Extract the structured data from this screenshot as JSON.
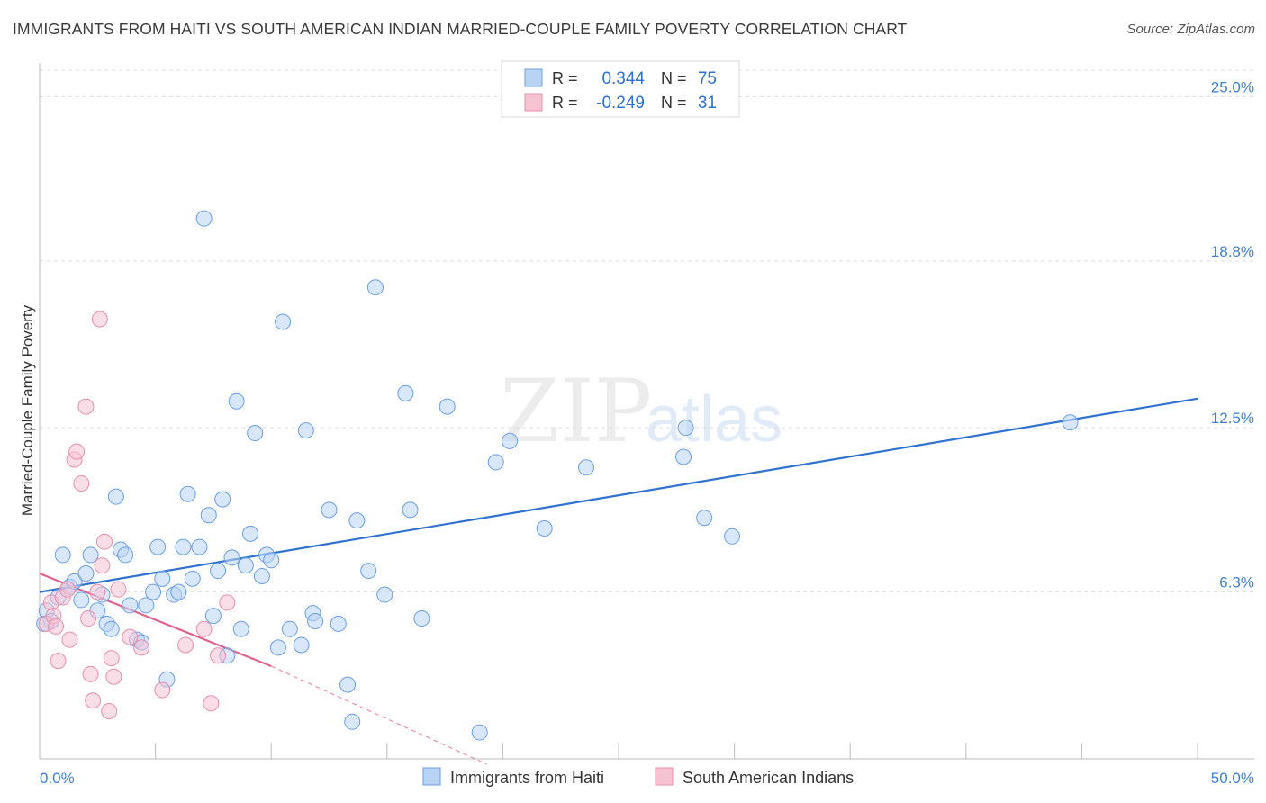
{
  "header": {
    "title": "IMMIGRANTS FROM HAITI VS SOUTH AMERICAN INDIAN MARRIED-COUPLE FAMILY POVERTY CORRELATION CHART",
    "source": "Source: ZipAtlas.com"
  },
  "watermark": {
    "zip": "ZIP",
    "atlas": "atlas"
  },
  "colors": {
    "blue_fill": "#b9d3f5",
    "blue_stroke": "#6a9ee0",
    "blue_line": "#2f72d0",
    "pink_fill": "#f6c3d3",
    "pink_stroke": "#e58fab",
    "pink_line": "#e0628f",
    "tick_text": "#3f7fd0",
    "grid": "#dddddd"
  },
  "chart_data": {
    "type": "scatter",
    "ylabel": "Married-Couple Family Poverty",
    "xlim": [
      0,
      50
    ],
    "ylim": [
      0,
      26.2
    ],
    "y_ticks": [
      {
        "value": 6.3,
        "label": "6.3%"
      },
      {
        "value": 12.5,
        "label": "12.5%"
      },
      {
        "value": 18.8,
        "label": "18.8%"
      },
      {
        "value": 25.0,
        "label": "25.0%"
      }
    ],
    "x_tick_labels": {
      "left": "0.0%",
      "right": "50.0%"
    },
    "legend_stats": [
      {
        "r_label": "R =",
        "r_value": "0.344",
        "n_label": "N =",
        "n_value": "75"
      },
      {
        "r_label": "R =",
        "r_value": "-0.249",
        "n_label": "N =",
        "n_value": "31"
      }
    ],
    "series": [
      {
        "name": "Immigrants from Haiti",
        "color": "blue",
        "trend": {
          "x0": 0,
          "y0": 6.3,
          "x1": 50,
          "y1": 13.6
        },
        "points": [
          [
            0.3,
            5.6
          ],
          [
            0.5,
            5.2
          ],
          [
            0.8,
            6.1
          ],
          [
            1.0,
            7.7
          ],
          [
            1.3,
            6.5
          ],
          [
            1.5,
            6.7
          ],
          [
            1.8,
            6.0
          ],
          [
            2.0,
            7.0
          ],
          [
            2.2,
            7.7
          ],
          [
            2.5,
            5.6
          ],
          [
            2.7,
            6.2
          ],
          [
            2.9,
            5.1
          ],
          [
            3.1,
            4.9
          ],
          [
            3.3,
            9.9
          ],
          [
            3.5,
            7.9
          ],
          [
            3.7,
            7.7
          ],
          [
            3.9,
            5.8
          ],
          [
            4.2,
            4.5
          ],
          [
            4.4,
            4.4
          ],
          [
            4.6,
            5.8
          ],
          [
            4.9,
            6.3
          ],
          [
            5.1,
            8.0
          ],
          [
            5.3,
            6.8
          ],
          [
            5.5,
            3.0
          ],
          [
            5.8,
            6.2
          ],
          [
            6.0,
            6.3
          ],
          [
            6.2,
            8.0
          ],
          [
            6.4,
            10.0
          ],
          [
            6.6,
            6.8
          ],
          [
            6.9,
            8.0
          ],
          [
            7.1,
            20.4
          ],
          [
            7.3,
            9.2
          ],
          [
            7.5,
            5.4
          ],
          [
            7.7,
            7.1
          ],
          [
            7.9,
            9.8
          ],
          [
            8.1,
            3.9
          ],
          [
            8.3,
            7.6
          ],
          [
            8.5,
            13.5
          ],
          [
            8.7,
            4.9
          ],
          [
            8.9,
            7.3
          ],
          [
            9.1,
            8.5
          ],
          [
            9.3,
            12.3
          ],
          [
            9.6,
            6.9
          ],
          [
            9.8,
            7.7
          ],
          [
            10.0,
            7.5
          ],
          [
            10.3,
            4.2
          ],
          [
            10.5,
            16.5
          ],
          [
            10.8,
            4.9
          ],
          [
            11.3,
            4.3
          ],
          [
            11.5,
            12.4
          ],
          [
            11.8,
            5.5
          ],
          [
            11.9,
            5.2
          ],
          [
            12.5,
            9.4
          ],
          [
            12.9,
            5.1
          ],
          [
            13.3,
            2.8
          ],
          [
            13.5,
            1.4
          ],
          [
            13.7,
            9.0
          ],
          [
            14.2,
            7.1
          ],
          [
            14.5,
            17.8
          ],
          [
            14.9,
            6.2
          ],
          [
            15.8,
            13.8
          ],
          [
            16.0,
            9.4
          ],
          [
            16.5,
            5.3
          ],
          [
            17.6,
            13.3
          ],
          [
            19.0,
            1.0
          ],
          [
            19.7,
            11.2
          ],
          [
            20.3,
            12.0
          ],
          [
            21.8,
            8.7
          ],
          [
            23.6,
            11.0
          ],
          [
            27.8,
            11.4
          ],
          [
            27.9,
            12.5
          ],
          [
            28.7,
            9.1
          ],
          [
            29.9,
            8.4
          ],
          [
            44.5,
            12.7
          ],
          [
            0.2,
            5.1
          ]
        ]
      },
      {
        "name": "South American Indians",
        "color": "pink",
        "trend": {
          "x0": 0,
          "y0": 7.0,
          "x1": 10,
          "y1": 3.5
        },
        "trend_dashed": {
          "x0": 10,
          "y0": 3.5,
          "x1": 19.3,
          "y1": -0.2
        },
        "points": [
          [
            0.3,
            5.1
          ],
          [
            0.5,
            5.9
          ],
          [
            0.6,
            5.4
          ],
          [
            0.7,
            5.0
          ],
          [
            0.8,
            3.7
          ],
          [
            1.0,
            6.1
          ],
          [
            1.2,
            6.4
          ],
          [
            1.3,
            4.5
          ],
          [
            1.5,
            11.3
          ],
          [
            1.6,
            11.6
          ],
          [
            1.8,
            10.4
          ],
          [
            2.0,
            13.3
          ],
          [
            2.1,
            5.3
          ],
          [
            2.2,
            3.2
          ],
          [
            2.3,
            2.2
          ],
          [
            2.5,
            6.3
          ],
          [
            2.6,
            16.6
          ],
          [
            2.7,
            7.3
          ],
          [
            2.8,
            8.2
          ],
          [
            3.0,
            1.8
          ],
          [
            3.1,
            3.8
          ],
          [
            3.2,
            3.1
          ],
          [
            3.4,
            6.4
          ],
          [
            3.9,
            4.6
          ],
          [
            4.4,
            4.2
          ],
          [
            5.3,
            2.6
          ],
          [
            6.3,
            4.3
          ],
          [
            7.1,
            4.9
          ],
          [
            7.4,
            2.1
          ],
          [
            7.7,
            3.9
          ],
          [
            8.1,
            5.9
          ]
        ]
      }
    ],
    "legend_entries": [
      "Immigrants from Haiti",
      "South American Indians"
    ]
  }
}
